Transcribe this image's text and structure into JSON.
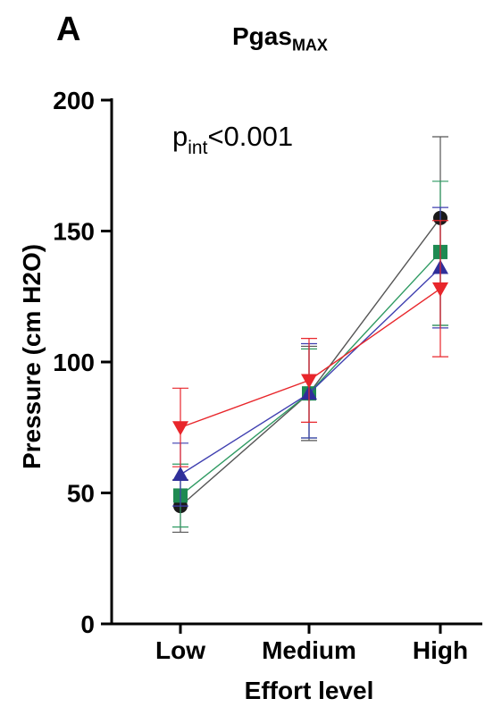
{
  "panel_label": "A",
  "chart_data": {
    "type": "line",
    "title_main": "Pgas",
    "title_sub": "MAX",
    "xlabel": "Effort level",
    "ylabel": "Pressure (cm H2O)",
    "categories": [
      "Low",
      "Medium",
      "High"
    ],
    "ylim": [
      0,
      200
    ],
    "yticks": [
      0,
      50,
      100,
      150,
      200
    ],
    "annotation": {
      "main": "p",
      "sub": "int",
      "rest": "<0.001"
    },
    "series": [
      {
        "marker": "circle",
        "color": "#1a1a1a",
        "line_color": "#555555",
        "values": [
          45,
          88,
          155
        ],
        "err_low": [
          35,
          70,
          114
        ],
        "err_high": [
          55,
          106,
          186
        ]
      },
      {
        "marker": "square",
        "color": "#1e8a52",
        "line_color": "#2e9a62",
        "values": [
          49,
          88,
          142
        ],
        "err_low": [
          37,
          71,
          114
        ],
        "err_high": [
          61,
          105,
          169
        ]
      },
      {
        "marker": "triangle-up",
        "color": "#2f2f9a",
        "line_color": "#3f3fb0",
        "values": [
          57,
          88,
          136
        ],
        "err_low": [
          45,
          71,
          113
        ],
        "err_high": [
          69,
          107,
          159
        ]
      },
      {
        "marker": "triangle-down",
        "color": "#e8262b",
        "line_color": "#e8262b",
        "values": [
          75,
          93,
          128
        ],
        "err_low": [
          60,
          77,
          102
        ],
        "err_high": [
          90,
          109,
          154
        ]
      }
    ]
  }
}
